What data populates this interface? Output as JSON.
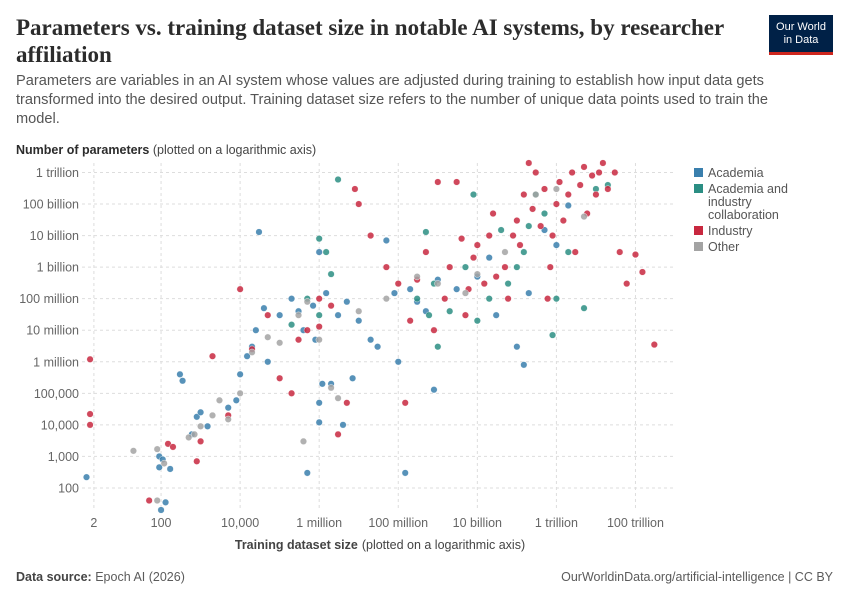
{
  "header": {
    "title": "Parameters vs. training dataset size in notable AI systems, by researcher affiliation",
    "subtitle": "Parameters are variables in an AI system whose values are adjusted during training to establish how input data gets transformed into the desired output. Training dataset size refers to the number of unique data points used to train the model.",
    "logo_line1": "Our World",
    "logo_line2": "in Data"
  },
  "footer": {
    "source_label": "Data source:",
    "source_value": "Epoch AI (2026)",
    "url": "OurWorldinData.org/artificial-intelligence | CC BY"
  },
  "colors": {
    "Academia": "#3a7fad",
    "Academia and industry collaboration": "#2b8e83",
    "Industry": "#c8283f",
    "Other": "#a3a3a3"
  },
  "chart_data": {
    "type": "scatter",
    "x_scale": "log",
    "y_scale": "log",
    "xlabel": "Training dataset size",
    "xlabel_note": "(plotted on a logarithmic axis)",
    "ylabel": "Number of parameters",
    "ylabel_note": "(plotted on a logarithmic axis)",
    "xlim": [
      1,
      1000000000000000
    ],
    "ylim": [
      20,
      2000000000000
    ],
    "x_ticks": [
      {
        "value": 2,
        "label": "2"
      },
      {
        "value": 100,
        "label": "100"
      },
      {
        "value": 10000,
        "label": "10,000"
      },
      {
        "value": 1000000,
        "label": "1 million"
      },
      {
        "value": 100000000,
        "label": "100 million"
      },
      {
        "value": 10000000000,
        "label": "10 billion"
      },
      {
        "value": 1000000000000,
        "label": "1 trillion"
      },
      {
        "value": 100000000000000,
        "label": "100 trillion"
      }
    ],
    "y_ticks": [
      {
        "value": 100,
        "label": "100"
      },
      {
        "value": 1000,
        "label": "1,000"
      },
      {
        "value": 10000,
        "label": "10,000"
      },
      {
        "value": 100000,
        "label": "100,000"
      },
      {
        "value": 1000000,
        "label": "1 million"
      },
      {
        "value": 10000000,
        "label": "10 million"
      },
      {
        "value": 100000000,
        "label": "100 million"
      },
      {
        "value": 1000000000,
        "label": "1 billion"
      },
      {
        "value": 10000000000,
        "label": "10 billion"
      },
      {
        "value": 100000000000,
        "label": "100 billion"
      },
      {
        "value": 1000000000000,
        "label": "1 trillion"
      }
    ],
    "grid": true,
    "legend_position": "right",
    "series": [
      {
        "name": "Academia",
        "points": [
          [
            1.3,
            220
          ],
          [
            90,
            1000
          ],
          [
            90,
            450
          ],
          [
            100,
            20
          ],
          [
            110,
            800
          ],
          [
            130,
            35
          ],
          [
            170,
            400
          ],
          [
            300,
            400000
          ],
          [
            350,
            250000
          ],
          [
            600,
            5000
          ],
          [
            800,
            18000
          ],
          [
            1000,
            25000
          ],
          [
            1500,
            9000
          ],
          [
            5000,
            35000
          ],
          [
            8000,
            60000
          ],
          [
            10000,
            400000
          ],
          [
            15000,
            1500000
          ],
          [
            20000,
            3000000
          ],
          [
            25000,
            10000000
          ],
          [
            30000,
            13000000000
          ],
          [
            40000,
            50000000
          ],
          [
            50000,
            1000000
          ],
          [
            100000,
            30000000
          ],
          [
            200000,
            100000000
          ],
          [
            300000,
            40000000
          ],
          [
            400000,
            10000000
          ],
          [
            500000,
            300
          ],
          [
            700000,
            60000000
          ],
          [
            800000,
            5000000
          ],
          [
            1000000,
            3000000000
          ],
          [
            1000000,
            12000
          ],
          [
            1200000,
            200000
          ],
          [
            1500000,
            150000000
          ],
          [
            2000000,
            200000
          ],
          [
            3000000,
            30000000
          ],
          [
            5000000,
            80000000
          ],
          [
            7000000,
            300000
          ],
          [
            10000000,
            20000000
          ],
          [
            20000000,
            5000000
          ],
          [
            30000000,
            3000000
          ],
          [
            50000000,
            7000000000
          ],
          [
            80000000,
            150000000
          ],
          [
            100000000,
            1000000
          ],
          [
            150000000,
            300
          ],
          [
            200000000,
            200000000
          ],
          [
            300000000,
            80000000
          ],
          [
            500000000,
            40000000
          ],
          [
            800000000,
            130000
          ],
          [
            1000000000,
            400000000
          ],
          [
            3000000000,
            200000000
          ],
          [
            10000000000,
            500000000
          ],
          [
            20000000000,
            2000000000
          ],
          [
            30000000000,
            30000000
          ],
          [
            100000000000,
            3000000
          ],
          [
            150000000000,
            800000
          ],
          [
            200000000000,
            150000000
          ],
          [
            500000000000,
            15000000000
          ],
          [
            1000000000000,
            5000000000
          ],
          [
            2000000000000,
            90000000000
          ],
          [
            1000000,
            50000
          ],
          [
            4000000,
            10000
          ]
        ]
      },
      {
        "name": "Academia and industry collaboration",
        "points": [
          [
            3000000,
            600000000000
          ],
          [
            1000000,
            8000000000
          ],
          [
            1500000,
            3000000000
          ],
          [
            300000000,
            100000000
          ],
          [
            500000000,
            13000000000
          ],
          [
            600000000,
            30000000
          ],
          [
            800000000,
            300000000
          ],
          [
            1000000000,
            3000000
          ],
          [
            2000000000,
            40000000
          ],
          [
            5000000000,
            1000000000
          ],
          [
            8000000000,
            200000000000
          ],
          [
            10000000000,
            20000000
          ],
          [
            20000000000,
            100000000
          ],
          [
            40000000000,
            15000000000
          ],
          [
            60000000000,
            300000000
          ],
          [
            100000000000,
            1000000000
          ],
          [
            150000000000,
            3000000000
          ],
          [
            200000000000,
            20000000000
          ],
          [
            300000000000,
            200000000000
          ],
          [
            500000000000,
            50000000000
          ],
          [
            800000000000,
            7000000
          ],
          [
            1000000000000,
            100000000
          ],
          [
            2000000000000,
            3000000000
          ],
          [
            5000000000000,
            50000000
          ],
          [
            10000000000000,
            300000000000
          ],
          [
            20000000000000,
            400000000000
          ],
          [
            200000,
            15000000
          ],
          [
            500000,
            100000000
          ],
          [
            1000000,
            30000000
          ],
          [
            2000000,
            600000000
          ]
        ]
      },
      {
        "name": "Industry",
        "points": [
          [
            1.6,
            1200000
          ],
          [
            1.6,
            22000
          ],
          [
            1.6,
            10000
          ],
          [
            50,
            40
          ],
          [
            150,
            2500
          ],
          [
            200,
            2000
          ],
          [
            800,
            700
          ],
          [
            1000,
            3000
          ],
          [
            2000,
            1500000
          ],
          [
            5000,
            20000
          ],
          [
            10000,
            200000000
          ],
          [
            20000,
            2500000
          ],
          [
            50000,
            30000000
          ],
          [
            100000,
            300000
          ],
          [
            200000,
            100000
          ],
          [
            300000,
            5000000
          ],
          [
            500000,
            10000000
          ],
          [
            1000000,
            13000000
          ],
          [
            1000000,
            100000000
          ],
          [
            2000000,
            60000000
          ],
          [
            3000000,
            5000
          ],
          [
            5000000,
            50000
          ],
          [
            8000000,
            300000000000
          ],
          [
            10000000,
            100000000000
          ],
          [
            20000000,
            10000000000
          ],
          [
            50000000,
            1000000000
          ],
          [
            100000000,
            300000000
          ],
          [
            150000000,
            50000
          ],
          [
            200000000,
            20000000
          ],
          [
            300000000,
            400000000
          ],
          [
            500000000,
            3000000000
          ],
          [
            800000000,
            10000000
          ],
          [
            1000000000,
            500000000000
          ],
          [
            1500000000,
            100000000
          ],
          [
            2000000000,
            1000000000
          ],
          [
            3000000000,
            500000000000
          ],
          [
            4000000000,
            8000000000
          ],
          [
            5000000000,
            30000000
          ],
          [
            6000000000,
            200000000
          ],
          [
            8000000000,
            2000000000
          ],
          [
            10000000000,
            5000000000
          ],
          [
            15000000000,
            300000000
          ],
          [
            20000000000,
            10000000000
          ],
          [
            25000000000,
            50000000000
          ],
          [
            30000000000,
            500000000
          ],
          [
            50000000000,
            1000000000
          ],
          [
            60000000000,
            100000000
          ],
          [
            80000000000,
            10000000000
          ],
          [
            100000000000,
            30000000000
          ],
          [
            120000000000,
            5000000000
          ],
          [
            150000000000,
            200000000000
          ],
          [
            200000000000,
            2000000000000
          ],
          [
            250000000000,
            70000000000
          ],
          [
            300000000000,
            1000000000000
          ],
          [
            400000000000,
            20000000000
          ],
          [
            500000000000,
            300000000000
          ],
          [
            600000000000,
            100000000
          ],
          [
            700000000000,
            1000000000
          ],
          [
            800000000000,
            10000000000
          ],
          [
            1000000000000,
            100000000000
          ],
          [
            1200000000000,
            500000000000
          ],
          [
            1500000000000,
            30000000000
          ],
          [
            2000000000000,
            200000000000
          ],
          [
            2500000000000,
            1000000000000
          ],
          [
            3000000000000,
            3000000000
          ],
          [
            4000000000000,
            400000000000
          ],
          [
            5000000000000,
            1500000000000
          ],
          [
            6000000000000,
            50000000000
          ],
          [
            8000000000000,
            800000000000
          ],
          [
            10000000000000,
            200000000000
          ],
          [
            12000000000000,
            1000000000000
          ],
          [
            15000000000000,
            2000000000000
          ],
          [
            20000000000000,
            300000000000
          ],
          [
            30000000000000,
            1000000000000
          ],
          [
            40000000000000,
            3000000000
          ],
          [
            60000000000000,
            300000000
          ],
          [
            100000000000000,
            2500000000
          ],
          [
            150000000000000,
            700000000
          ],
          [
            300000000000000,
            3500000
          ]
        ]
      },
      {
        "name": "Other",
        "points": [
          [
            20,
            1500
          ],
          [
            80,
            1700
          ],
          [
            80,
            40
          ],
          [
            120,
            600
          ],
          [
            500,
            4000
          ],
          [
            700,
            5000
          ],
          [
            1000,
            9000
          ],
          [
            2000,
            20000
          ],
          [
            3000,
            60000
          ],
          [
            5000,
            15000
          ],
          [
            10000,
            100000
          ],
          [
            20000,
            2000000
          ],
          [
            50000,
            6000000
          ],
          [
            100000,
            4000000
          ],
          [
            300000,
            30000000
          ],
          [
            500000,
            80000000
          ],
          [
            1000000,
            5000000
          ],
          [
            2000000,
            150000
          ],
          [
            3000000,
            70000
          ],
          [
            10000000,
            40000000
          ],
          [
            50000000,
            100000000
          ],
          [
            300000000,
            500000000
          ],
          [
            1000000000,
            300000000
          ],
          [
            5000000000,
            150000000
          ],
          [
            10000000000,
            600000000
          ],
          [
            50000000000,
            3000000000
          ],
          [
            300000000000,
            200000000000
          ],
          [
            1000000000000,
            300000000000
          ],
          [
            5000000000000,
            40000000000
          ],
          [
            400000,
            3000
          ]
        ]
      }
    ]
  }
}
